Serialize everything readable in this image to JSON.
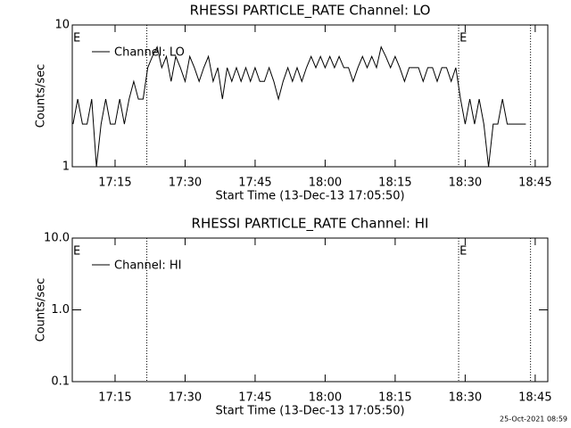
{
  "chart_data": [
    {
      "type": "line",
      "title": "RHESSI PARTICLE_RATE Channel: LO",
      "xlabel": "Start Time (13-Dec-13 17:05:50)",
      "ylabel": "Counts/sec",
      "xlim": [
        1025.83,
        1127.7
      ],
      "ylim": [
        1,
        10
      ],
      "log_y": true,
      "xticks": [
        {
          "value": 1035,
          "label": "17:15"
        },
        {
          "value": 1050,
          "label": "17:30"
        },
        {
          "value": 1065,
          "label": "17:45"
        },
        {
          "value": 1080,
          "label": "18:00"
        },
        {
          "value": 1095,
          "label": "18:15"
        },
        {
          "value": 1110,
          "label": "18:30"
        },
        {
          "value": 1125,
          "label": "18:45"
        }
      ],
      "yticks": [
        1,
        10
      ],
      "vlines": [
        1041.8,
        1108.6,
        1124.0
      ],
      "annotations": [
        {
          "text": "E",
          "x": 1025.83
        },
        {
          "text": "E",
          "x": 1108.6
        }
      ],
      "x": [
        1026,
        1027,
        1028,
        1029,
        1030,
        1031,
        1032,
        1033,
        1034,
        1035,
        1036,
        1037,
        1038,
        1039,
        1040,
        1041,
        1042,
        1043,
        1044,
        1045,
        1046,
        1047,
        1048,
        1049,
        1050,
        1051,
        1052,
        1053,
        1054,
        1055,
        1056,
        1057,
        1058,
        1059,
        1060,
        1061,
        1062,
        1063,
        1064,
        1065,
        1066,
        1067,
        1068,
        1069,
        1070,
        1071,
        1072,
        1073,
        1074,
        1075,
        1076,
        1077,
        1078,
        1079,
        1080,
        1081,
        1082,
        1083,
        1084,
        1085,
        1086,
        1087,
        1088,
        1089,
        1090,
        1091,
        1092,
        1093,
        1094,
        1095,
        1096,
        1097,
        1098,
        1099,
        1100,
        1101,
        1102,
        1103,
        1104,
        1105,
        1106,
        1107,
        1108,
        1109,
        1110,
        1111,
        1112,
        1113,
        1114,
        1115,
        1116,
        1117,
        1118,
        1119,
        1120,
        1121,
        1122,
        1123
      ],
      "series": [
        {
          "name": "Channel: LO",
          "color": "#000000",
          "values": [
            2,
            3,
            2,
            2,
            3,
            1,
            2,
            3,
            2,
            2,
            3,
            2,
            3,
            4,
            3,
            3,
            5,
            6,
            7,
            5,
            6,
            4,
            6,
            5,
            4,
            6,
            5,
            4,
            5,
            6,
            4,
            5,
            3,
            5,
            4,
            5,
            4,
            5,
            4,
            5,
            4,
            4,
            5,
            4,
            3,
            4,
            5,
            4,
            5,
            4,
            5,
            6,
            5,
            6,
            5,
            6,
            5,
            6,
            5,
            5,
            4,
            5,
            6,
            5,
            6,
            5,
            7,
            6,
            5,
            6,
            5,
            4,
            5,
            5,
            5,
            4,
            5,
            5,
            4,
            5,
            5,
            4,
            5,
            3,
            2,
            3,
            2,
            3,
            2,
            1,
            2,
            2,
            3,
            2,
            2,
            2,
            2,
            2
          ]
        }
      ]
    },
    {
      "type": "line",
      "title": "RHESSI PARTICLE_RATE Channel: HI",
      "xlabel": "Start Time (13-Dec-13 17:05:50)",
      "ylabel": "Counts/sec",
      "xlim": [
        1025.83,
        1127.7
      ],
      "ylim": [
        0.1,
        10
      ],
      "log_y": true,
      "xticks": [
        {
          "value": 1035,
          "label": "17:15"
        },
        {
          "value": 1050,
          "label": "17:30"
        },
        {
          "value": 1065,
          "label": "17:45"
        },
        {
          "value": 1080,
          "label": "18:00"
        },
        {
          "value": 1095,
          "label": "18:15"
        },
        {
          "value": 1110,
          "label": "18:30"
        },
        {
          "value": 1125,
          "label": "18:45"
        }
      ],
      "yticks": [
        0.1,
        {
          "value": 1,
          "label": "1.0"
        },
        {
          "value": 10,
          "label": "10.0"
        }
      ],
      "vlines": [
        1041.8,
        1108.6,
        1124.0
      ],
      "annotations": [
        {
          "text": "E",
          "x": 1025.83
        },
        {
          "text": "E",
          "x": 1108.6
        }
      ],
      "x": [],
      "series": [
        {
          "name": "Channel: HI",
          "color": "#000000",
          "values": []
        }
      ]
    }
  ],
  "footer": "25-Oct-2021 08:59"
}
